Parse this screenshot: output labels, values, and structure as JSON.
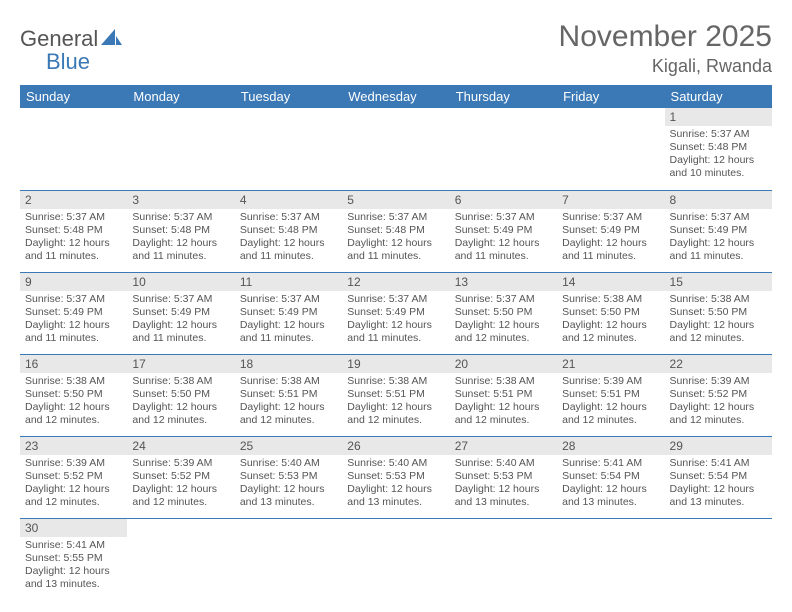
{
  "brand": {
    "part1": "General",
    "part2": "Blue"
  },
  "title": "November 2025",
  "location": "Kigali, Rwanda",
  "colors": {
    "header_bg": "#3a78b6",
    "daynum_bg": "#e8e8e8",
    "text": "#555555"
  },
  "weekdays": [
    "Sunday",
    "Monday",
    "Tuesday",
    "Wednesday",
    "Thursday",
    "Friday",
    "Saturday"
  ],
  "weeks": [
    [
      null,
      null,
      null,
      null,
      null,
      null,
      {
        "n": "1",
        "sr": "Sunrise: 5:37 AM",
        "ss": "Sunset: 5:48 PM",
        "dl": "Daylight: 12 hours and 10 minutes."
      }
    ],
    [
      {
        "n": "2",
        "sr": "Sunrise: 5:37 AM",
        "ss": "Sunset: 5:48 PM",
        "dl": "Daylight: 12 hours and 11 minutes."
      },
      {
        "n": "3",
        "sr": "Sunrise: 5:37 AM",
        "ss": "Sunset: 5:48 PM",
        "dl": "Daylight: 12 hours and 11 minutes."
      },
      {
        "n": "4",
        "sr": "Sunrise: 5:37 AM",
        "ss": "Sunset: 5:48 PM",
        "dl": "Daylight: 12 hours and 11 minutes."
      },
      {
        "n": "5",
        "sr": "Sunrise: 5:37 AM",
        "ss": "Sunset: 5:48 PM",
        "dl": "Daylight: 12 hours and 11 minutes."
      },
      {
        "n": "6",
        "sr": "Sunrise: 5:37 AM",
        "ss": "Sunset: 5:49 PM",
        "dl": "Daylight: 12 hours and 11 minutes."
      },
      {
        "n": "7",
        "sr": "Sunrise: 5:37 AM",
        "ss": "Sunset: 5:49 PM",
        "dl": "Daylight: 12 hours and 11 minutes."
      },
      {
        "n": "8",
        "sr": "Sunrise: 5:37 AM",
        "ss": "Sunset: 5:49 PM",
        "dl": "Daylight: 12 hours and 11 minutes."
      }
    ],
    [
      {
        "n": "9",
        "sr": "Sunrise: 5:37 AM",
        "ss": "Sunset: 5:49 PM",
        "dl": "Daylight: 12 hours and 11 minutes."
      },
      {
        "n": "10",
        "sr": "Sunrise: 5:37 AM",
        "ss": "Sunset: 5:49 PM",
        "dl": "Daylight: 12 hours and 11 minutes."
      },
      {
        "n": "11",
        "sr": "Sunrise: 5:37 AM",
        "ss": "Sunset: 5:49 PM",
        "dl": "Daylight: 12 hours and 11 minutes."
      },
      {
        "n": "12",
        "sr": "Sunrise: 5:37 AM",
        "ss": "Sunset: 5:49 PM",
        "dl": "Daylight: 12 hours and 11 minutes."
      },
      {
        "n": "13",
        "sr": "Sunrise: 5:37 AM",
        "ss": "Sunset: 5:50 PM",
        "dl": "Daylight: 12 hours and 12 minutes."
      },
      {
        "n": "14",
        "sr": "Sunrise: 5:38 AM",
        "ss": "Sunset: 5:50 PM",
        "dl": "Daylight: 12 hours and 12 minutes."
      },
      {
        "n": "15",
        "sr": "Sunrise: 5:38 AM",
        "ss": "Sunset: 5:50 PM",
        "dl": "Daylight: 12 hours and 12 minutes."
      }
    ],
    [
      {
        "n": "16",
        "sr": "Sunrise: 5:38 AM",
        "ss": "Sunset: 5:50 PM",
        "dl": "Daylight: 12 hours and 12 minutes."
      },
      {
        "n": "17",
        "sr": "Sunrise: 5:38 AM",
        "ss": "Sunset: 5:50 PM",
        "dl": "Daylight: 12 hours and 12 minutes."
      },
      {
        "n": "18",
        "sr": "Sunrise: 5:38 AM",
        "ss": "Sunset: 5:51 PM",
        "dl": "Daylight: 12 hours and 12 minutes."
      },
      {
        "n": "19",
        "sr": "Sunrise: 5:38 AM",
        "ss": "Sunset: 5:51 PM",
        "dl": "Daylight: 12 hours and 12 minutes."
      },
      {
        "n": "20",
        "sr": "Sunrise: 5:38 AM",
        "ss": "Sunset: 5:51 PM",
        "dl": "Daylight: 12 hours and 12 minutes."
      },
      {
        "n": "21",
        "sr": "Sunrise: 5:39 AM",
        "ss": "Sunset: 5:51 PM",
        "dl": "Daylight: 12 hours and 12 minutes."
      },
      {
        "n": "22",
        "sr": "Sunrise: 5:39 AM",
        "ss": "Sunset: 5:52 PM",
        "dl": "Daylight: 12 hours and 12 minutes."
      }
    ],
    [
      {
        "n": "23",
        "sr": "Sunrise: 5:39 AM",
        "ss": "Sunset: 5:52 PM",
        "dl": "Daylight: 12 hours and 12 minutes."
      },
      {
        "n": "24",
        "sr": "Sunrise: 5:39 AM",
        "ss": "Sunset: 5:52 PM",
        "dl": "Daylight: 12 hours and 12 minutes."
      },
      {
        "n": "25",
        "sr": "Sunrise: 5:40 AM",
        "ss": "Sunset: 5:53 PM",
        "dl": "Daylight: 12 hours and 13 minutes."
      },
      {
        "n": "26",
        "sr": "Sunrise: 5:40 AM",
        "ss": "Sunset: 5:53 PM",
        "dl": "Daylight: 12 hours and 13 minutes."
      },
      {
        "n": "27",
        "sr": "Sunrise: 5:40 AM",
        "ss": "Sunset: 5:53 PM",
        "dl": "Daylight: 12 hours and 13 minutes."
      },
      {
        "n": "28",
        "sr": "Sunrise: 5:41 AM",
        "ss": "Sunset: 5:54 PM",
        "dl": "Daylight: 12 hours and 13 minutes."
      },
      {
        "n": "29",
        "sr": "Sunrise: 5:41 AM",
        "ss": "Sunset: 5:54 PM",
        "dl": "Daylight: 12 hours and 13 minutes."
      }
    ],
    [
      {
        "n": "30",
        "sr": "Sunrise: 5:41 AM",
        "ss": "Sunset: 5:55 PM",
        "dl": "Daylight: 12 hours and 13 minutes."
      },
      null,
      null,
      null,
      null,
      null,
      null
    ]
  ]
}
